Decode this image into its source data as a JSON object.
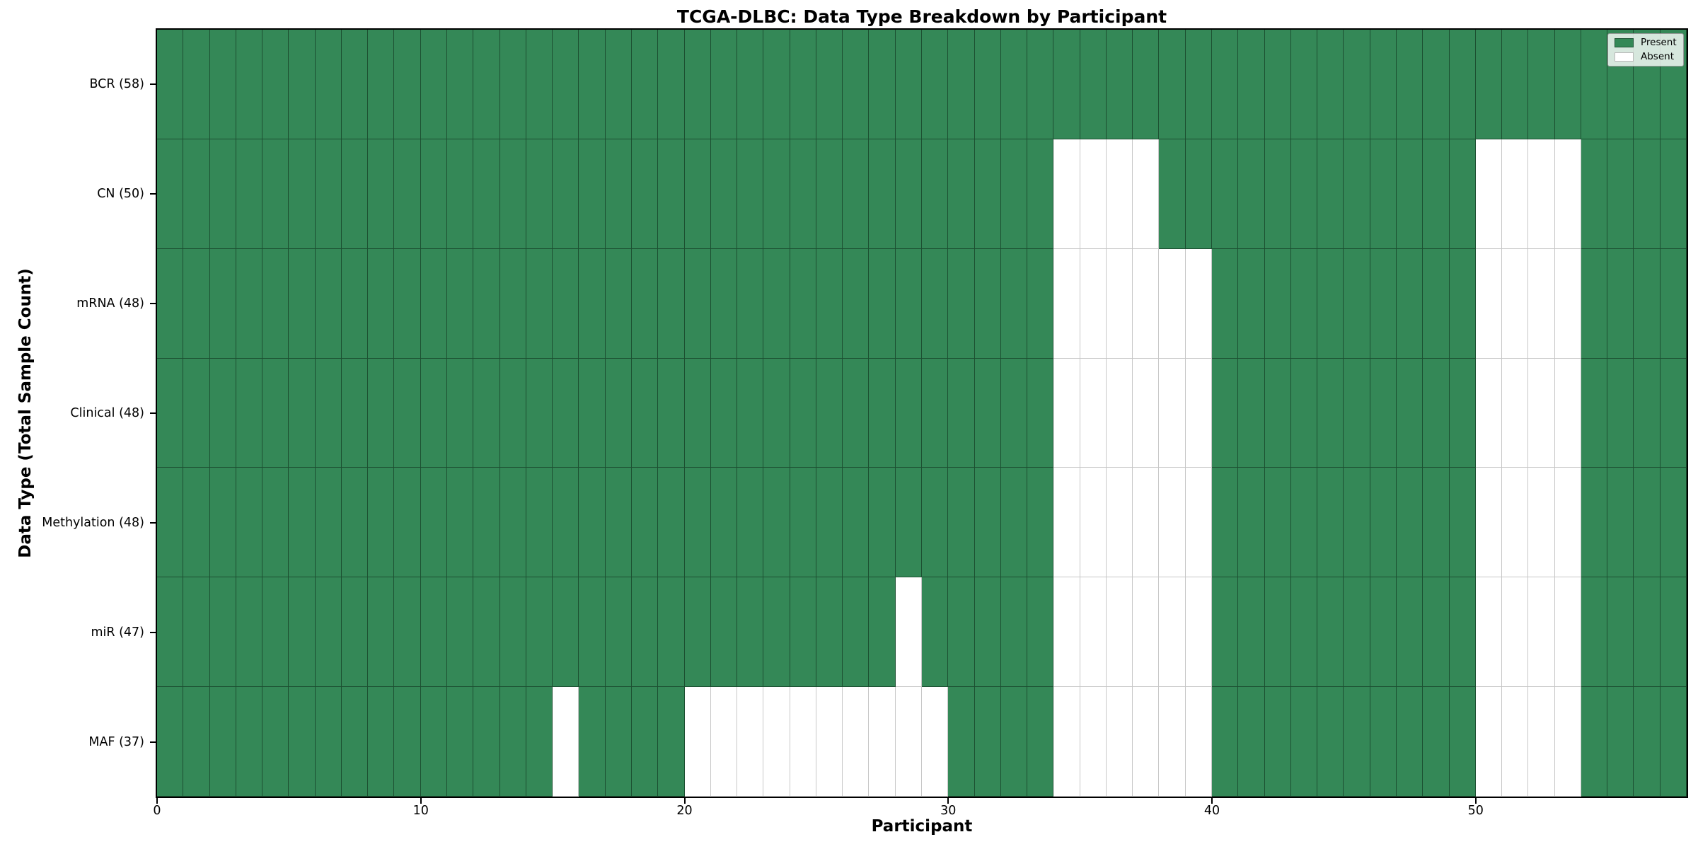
{
  "title": "TCGA-DLBC: Data Type Breakdown by Participant",
  "x_axis": {
    "label": "Participant",
    "ticks": [
      0,
      10,
      20,
      30,
      40,
      50
    ]
  },
  "y_axis": {
    "label": "Data Type (Total Sample Count)"
  },
  "legend": [
    {
      "label": "Present",
      "color": "#348857"
    },
    {
      "label": "Absent",
      "color": "#ffffff"
    }
  ],
  "chart_data": {
    "type": "heatmap",
    "title": "TCGA-DLBC: Data Type Breakdown by Participant",
    "xlabel": "Participant",
    "ylabel": "Data Type (Total Sample Count)",
    "x_range": [
      0,
      58
    ],
    "n_participants": 58,
    "x_ticks": [
      0,
      10,
      20,
      30,
      40,
      50
    ],
    "legend_position": "upper right",
    "colors": {
      "present": "#348857",
      "absent": "#ffffff"
    },
    "rows": [
      {
        "label": "BCR (58)",
        "data_type": "BCR",
        "present_count": 58,
        "absent_participants": []
      },
      {
        "label": "CN (50)",
        "data_type": "CN",
        "present_count": 50,
        "absent_participants": [
          34,
          35,
          36,
          37,
          50,
          51,
          52,
          53
        ]
      },
      {
        "label": "mRNA (48)",
        "data_type": "mRNA",
        "present_count": 48,
        "absent_participants": [
          34,
          35,
          36,
          37,
          38,
          39,
          50,
          51,
          52,
          53
        ]
      },
      {
        "label": "Clinical (48)",
        "data_type": "Clinical",
        "present_count": 48,
        "absent_participants": [
          34,
          35,
          36,
          37,
          38,
          39,
          50,
          51,
          52,
          53
        ]
      },
      {
        "label": "Methylation (48)",
        "data_type": "Methylation",
        "present_count": 48,
        "absent_participants": [
          34,
          35,
          36,
          37,
          38,
          39,
          50,
          51,
          52,
          53
        ]
      },
      {
        "label": "miR (47)",
        "data_type": "miR",
        "present_count": 47,
        "absent_participants": [
          28,
          34,
          35,
          36,
          37,
          38,
          39,
          50,
          51,
          52,
          53
        ]
      },
      {
        "label": "MAF (37)",
        "data_type": "MAF",
        "present_count": 37,
        "absent_participants": [
          15,
          20,
          21,
          22,
          23,
          24,
          25,
          26,
          27,
          28,
          29,
          34,
          35,
          36,
          37,
          38,
          39,
          50,
          51,
          52,
          53
        ]
      }
    ]
  }
}
